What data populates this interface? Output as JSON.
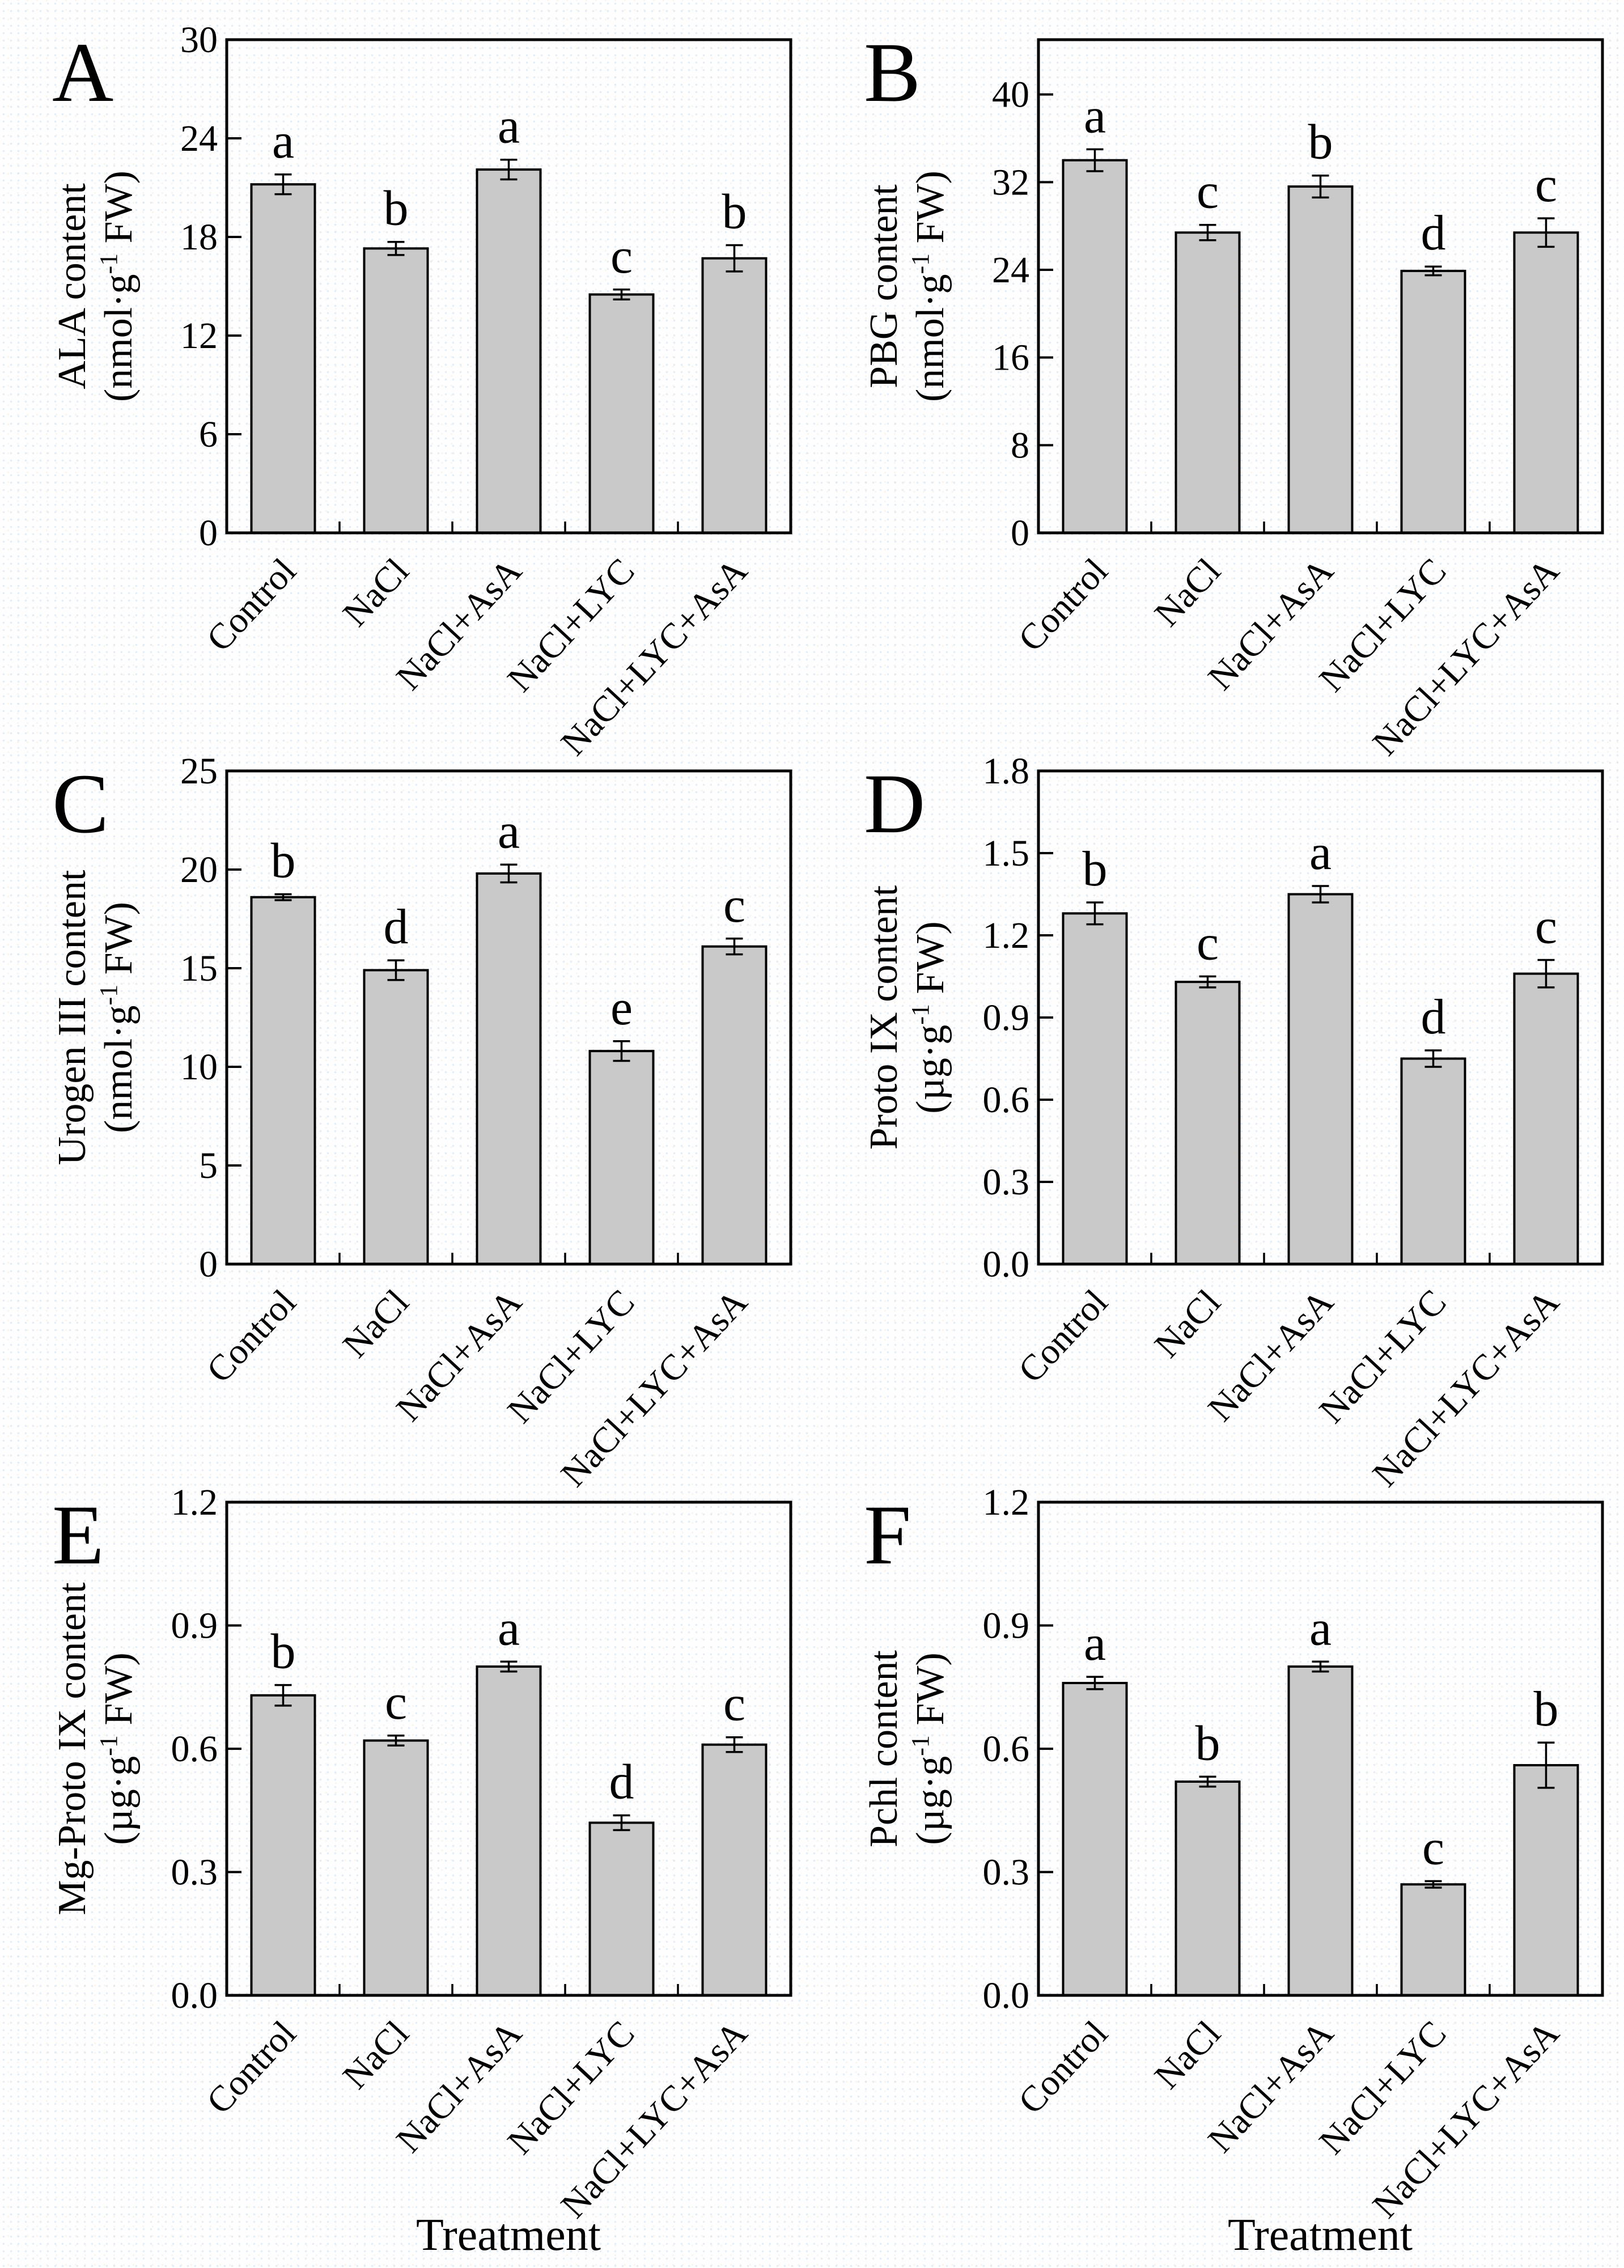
{
  "figure": {
    "x_axis_title": "Treatment",
    "bar_fill": "#c9c9c9",
    "bar_stroke": "#000000",
    "axis_color": "#000000",
    "background": "#fefefe"
  },
  "chart_data": [
    {
      "type": "bar",
      "panel_label": "A",
      "categories": [
        "Control",
        "NaCl",
        "NaCl+AsA",
        "NaCl+LYC",
        "NaCl+LYC+AsA"
      ],
      "values": [
        21.2,
        17.3,
        22.1,
        14.5,
        16.7
      ],
      "errors": [
        0.6,
        0.4,
        0.6,
        0.3,
        0.8
      ],
      "sig_letters": [
        "a",
        "b",
        "a",
        "c",
        "b"
      ],
      "ylabel_line1": "ALA content",
      "ylabel_line2": "(nmol·g^-1 FW)",
      "xlabel": "Treatment",
      "ylim": [
        0,
        30
      ],
      "yticks": [
        0,
        6,
        12,
        18,
        24,
        30
      ],
      "tick_decimals": 0,
      "grid": false
    },
    {
      "type": "bar",
      "panel_label": "B",
      "categories": [
        "Control",
        "NaCl",
        "NaCl+AsA",
        "NaCl+LYC",
        "NaCl+LYC+AsA"
      ],
      "values": [
        34.0,
        27.4,
        31.6,
        23.9,
        27.4
      ],
      "errors": [
        1.0,
        0.7,
        1.0,
        0.4,
        1.3
      ],
      "sig_letters": [
        "a",
        "c",
        "b",
        "d",
        "c"
      ],
      "ylabel_line1": "PBG content",
      "ylabel_line2": "(nmol·g^-1 FW)",
      "xlabel": "Treatment",
      "ylim": [
        0,
        45
      ],
      "yticks": [
        0,
        8,
        16,
        24,
        32,
        40
      ],
      "tick_decimals": 0,
      "grid": false
    },
    {
      "type": "bar",
      "panel_label": "C",
      "categories": [
        "Control",
        "NaCl",
        "NaCl+AsA",
        "NaCl+LYC",
        "NaCl+LYC+AsA"
      ],
      "values": [
        18.6,
        14.9,
        19.8,
        10.8,
        16.1
      ],
      "errors": [
        0.15,
        0.5,
        0.45,
        0.5,
        0.4
      ],
      "sig_letters": [
        "b",
        "d",
        "a",
        "e",
        "c"
      ],
      "ylabel_line1": "Urogen III content",
      "ylabel_line2": "(nmol·g^-1 FW)",
      "xlabel": "Treatment",
      "ylim": [
        0,
        25
      ],
      "yticks": [
        0,
        5,
        10,
        15,
        20,
        25
      ],
      "tick_decimals": 0,
      "grid": false
    },
    {
      "type": "bar",
      "panel_label": "D",
      "categories": [
        "Control",
        "NaCl",
        "NaCl+AsA",
        "NaCl+LYC",
        "NaCl+LYC+AsA"
      ],
      "values": [
        1.28,
        1.03,
        1.35,
        0.75,
        1.06
      ],
      "errors": [
        0.04,
        0.02,
        0.03,
        0.03,
        0.05
      ],
      "sig_letters": [
        "b",
        "c",
        "a",
        "d",
        "c"
      ],
      "ylabel_line1": "Proto IX content",
      "ylabel_line2": "(µg·g^-1 FW)",
      "xlabel": "Treatment",
      "ylim": [
        0,
        1.8
      ],
      "yticks": [
        0,
        0.3,
        0.6,
        0.9,
        1.2,
        1.5,
        1.8
      ],
      "tick_decimals": 1,
      "grid": false
    },
    {
      "type": "bar",
      "panel_label": "E",
      "categories": [
        "Control",
        "NaCl",
        "NaCl+AsA",
        "NaCl+LYC",
        "NaCl+LYC+AsA"
      ],
      "values": [
        0.73,
        0.62,
        0.8,
        0.42,
        0.61
      ],
      "errors": [
        0.025,
        0.012,
        0.012,
        0.018,
        0.018
      ],
      "sig_letters": [
        "b",
        "c",
        "a",
        "d",
        "c"
      ],
      "ylabel_line1": "Mg-Proto IX content",
      "ylabel_line2": "(µg·g^-1 FW)",
      "xlabel": "Treatment",
      "ylim": [
        0,
        1.2
      ],
      "yticks": [
        0,
        0.3,
        0.6,
        0.9,
        1.2
      ],
      "tick_decimals": 1,
      "grid": false
    },
    {
      "type": "bar",
      "panel_label": "F",
      "categories": [
        "Control",
        "NaCl",
        "NaCl+AsA",
        "NaCl+LYC",
        "NaCl+LYC+AsA"
      ],
      "values": [
        0.76,
        0.52,
        0.8,
        0.27,
        0.56
      ],
      "errors": [
        0.015,
        0.012,
        0.012,
        0.008,
        0.055
      ],
      "sig_letters": [
        "a",
        "b",
        "a",
        "c",
        "b"
      ],
      "ylabel_line1": "Pchl content",
      "ylabel_line2": "(µg·g^-1 FW)",
      "xlabel": "Treatment",
      "ylim": [
        0,
        1.2
      ],
      "yticks": [
        0,
        0.3,
        0.6,
        0.9,
        1.2
      ],
      "tick_decimals": 1,
      "grid": false
    }
  ]
}
